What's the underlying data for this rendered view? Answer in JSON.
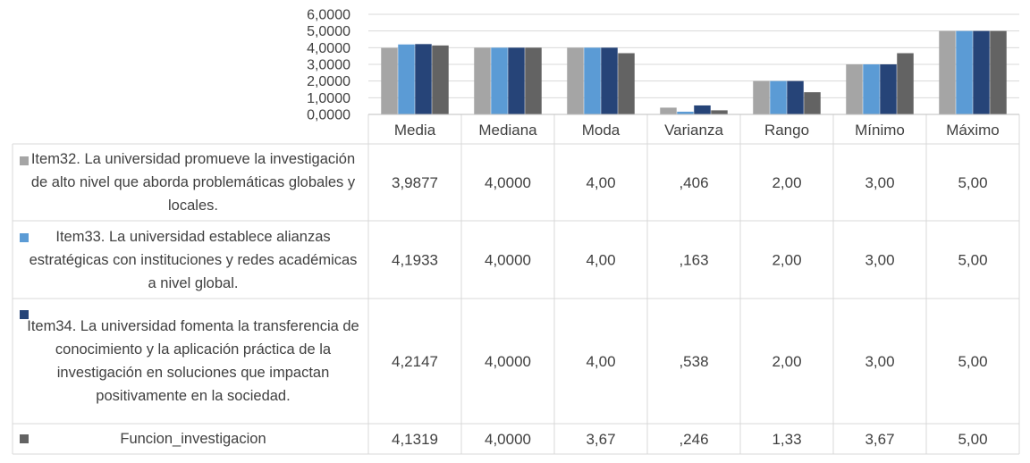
{
  "chart_data": {
    "type": "bar",
    "categories": [
      "Media",
      "Mediana",
      "Moda",
      "Varianza",
      "Rango",
      "Mínimo",
      "Máximo"
    ],
    "ylim": [
      0,
      6
    ],
    "yticks": [
      "0,0000",
      "1,0000",
      "2,0000",
      "3,0000",
      "4,0000",
      "5,0000",
      "6,0000"
    ],
    "series": [
      {
        "name": "Item32. La universidad promueve la investigación de alto nivel que aborda problemáticas globales y locales.",
        "color": "#A5A5A5",
        "values": [
          3.9877,
          4.0,
          4.0,
          0.406,
          2.0,
          3.0,
          5.0
        ],
        "labels": [
          "3,9877",
          "4,0000",
          "4,00",
          ",406",
          "2,00",
          "3,00",
          "5,00"
        ]
      },
      {
        "name": "Item33. La universidad establece alianzas estratégicas con instituciones y redes académicas a nivel global.",
        "color": "#5B9BD5",
        "values": [
          4.1933,
          4.0,
          4.0,
          0.163,
          2.0,
          3.0,
          5.0
        ],
        "labels": [
          "4,1933",
          "4,0000",
          "4,00",
          ",163",
          "2,00",
          "3,00",
          "5,00"
        ]
      },
      {
        "name": "Item34. La universidad fomenta la transferencia de conocimiento y la aplicación práctica de la investigación en soluciones que impactan positivamente en la sociedad.",
        "color": "#264478",
        "values": [
          4.2147,
          4.0,
          4.0,
          0.538,
          2.0,
          3.0,
          5.0
        ],
        "labels": [
          "4,2147",
          "4,0000",
          "4,00",
          ",538",
          "2,00",
          "3,00",
          "5,00"
        ]
      },
      {
        "name": "Funcion_investigacion",
        "color": "#636363",
        "values": [
          4.1319,
          4.0,
          3.67,
          0.246,
          1.33,
          3.67,
          5.0
        ],
        "labels": [
          "4,1319",
          "4,0000",
          "3,67",
          ",246",
          "1,33",
          "3,67",
          "5,00"
        ]
      }
    ],
    "legend": "data-table"
  }
}
